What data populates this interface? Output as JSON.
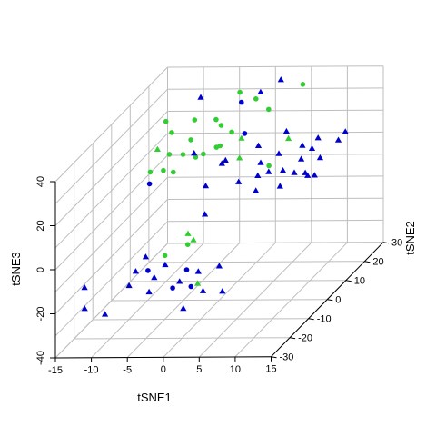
{
  "chart_data": {
    "type": "scatter3d",
    "title": "",
    "xlabel": "tSNE1",
    "ylabel": "tSNE2",
    "zlabel": "tSNE3",
    "xlim": [
      -15,
      15
    ],
    "ylim": [
      -30,
      30
    ],
    "zlim": [
      -40,
      40
    ],
    "x_ticks": [
      "-15",
      "-10",
      "-5",
      "0",
      "5",
      "10",
      "15"
    ],
    "y_ticks": [
      "-30",
      "-20",
      "-10",
      "0",
      "10",
      "20",
      "30"
    ],
    "z_ticks": [
      "-40",
      "-20",
      "0",
      "20",
      "40"
    ],
    "grid": true,
    "legend": "none",
    "colors": {
      "blue": "#0000cd",
      "green": "#32cd32"
    },
    "series": [
      {
        "color": "#0000cd",
        "marker": "triangle",
        "points": [
          [
            -12.5,
            -24.0,
            -13.3
          ],
          [
            -11.3,
            -28.6,
            -18.9
          ],
          [
            -8.8,
            -27.3,
            -22.6
          ],
          [
            -6.3,
            -20.5,
            -9.1
          ],
          [
            -6.4,
            -23.7,
            -12.8
          ],
          [
            -5.7,
            -17.5,
            -5.1
          ],
          [
            -3.1,
            -25.7,
            -14.0
          ],
          [
            -3.8,
            -20.2,
            -12.2
          ],
          [
            0.4,
            -22.8,
            -11.8
          ],
          [
            2.5,
            -20.9,
            -9.0
          ],
          [
            2.5,
            -28.9,
            -18.8
          ],
          [
            4.3,
            -25.3,
            -14.0
          ],
          [
            5.4,
            -20.8,
            -6.6
          ],
          [
            7.1,
            -25.7,
            -13.9
          ],
          [
            -2.3,
            -20.1,
            -6.5
          ],
          [
            1.6,
            -13.9,
            11.0
          ],
          [
            -0.6,
            -5.0,
            16.2
          ],
          [
            2.7,
            -0.1,
            13.7
          ],
          [
            4.8,
            2.1,
            14.6
          ],
          [
            5.0,
            0.3,
            9.3
          ],
          [
            9.3,
            -3.3,
            14.4
          ],
          [
            6.7,
            0.6,
            17.6
          ],
          [
            10.0,
            1.6,
            16.3
          ],
          [
            11.4,
            3.4,
            13.4
          ],
          [
            11.7,
            5.9,
            11.4
          ],
          [
            7.1,
            4.5,
            22.5
          ],
          [
            6.6,
            -3.3,
            25.1
          ],
          [
            2.3,
            -7.5,
            28.5
          ],
          [
            0.0,
            -13.5,
            38.4
          ],
          [
            3.2,
            -9.0,
            31.2
          ],
          [
            8.3,
            4.0,
            33.0
          ],
          [
            4.7,
            2.8,
            27.6
          ],
          [
            9.6,
            -2.9,
            21.2
          ],
          [
            11.1,
            1.1,
            22.9
          ],
          [
            11.9,
            0.2,
            17.4
          ],
          [
            13.0,
            3.9,
            21.0
          ],
          [
            10.7,
            8.4,
            21.4
          ],
          [
            11.1,
            10.1,
            24.7
          ],
          [
            13.9,
            10.2,
            23.6
          ],
          [
            14.9,
            10.1,
            27.5
          ],
          [
            11.6,
            -0.2,
            30.2
          ],
          [
            -3.5,
            3.5,
            49.1
          ],
          [
            6.2,
            -1.8,
            55.9
          ],
          [
            7.6,
            3.7,
            56.7
          ]
        ]
      },
      {
        "color": "#0000cd",
        "marker": "circle",
        "points": [
          [
            -5.5,
            -16.2,
            26.9
          ],
          [
            -0.2,
            -24.2,
            -13.6
          ],
          [
            3.9,
            -3.2,
            52.5
          ],
          [
            -4.6,
            -20.5,
            -8.8
          ],
          [
            2.2,
            -23.6,
            -13.5
          ],
          [
            4.2,
            -2.6,
            37.8
          ],
          [
            0.5,
            -19.4,
            -9.5
          ]
        ]
      },
      {
        "color": "#32cd32",
        "marker": "circle",
        "points": [
          [
            3.9,
            -4.0,
            57.7
          ],
          [
            5.4,
            -1.2,
            52.3
          ],
          [
            -3.9,
            -10.5,
            45.2
          ],
          [
            -6.1,
            -5.1,
            45.6
          ],
          [
            1.7,
            -8.3,
            49.1
          ],
          [
            6.6,
            1.0,
            45.6
          ],
          [
            -2.4,
            -4.0,
            45.3
          ],
          [
            3.1,
            -5.3,
            40.8
          ],
          [
            1.6,
            -5.2,
            43.8
          ],
          [
            -3.6,
            -12.9,
            37.4
          ],
          [
            -2.4,
            -10.2,
            35.0
          ],
          [
            -2.4,
            -6.0,
            38.0
          ],
          [
            -0.4,
            -7.0,
            32.4
          ],
          [
            1.3,
            -4.6,
            34.0
          ],
          [
            -5.3,
            -16.6,
            32.6
          ],
          [
            -3.6,
            -10.8,
            27.5
          ],
          [
            -1.5,
            -6.9,
            30.9
          ],
          [
            7.7,
            -3.1,
            23.5
          ],
          [
            1.8,
            -8.5,
            36.7
          ],
          [
            10.2,
            5.4,
            53.1
          ],
          [
            -2.6,
            -19.1,
            -3.2
          ],
          [
            -0.7,
            -14.2,
            -2.5
          ],
          [
            -5.6,
            -8.4,
            26.2
          ]
        ]
      },
      {
        "color": "#32cd32",
        "marker": "triangle",
        "points": [
          [
            0.4,
            -15.4,
            0.7
          ],
          [
            2.6,
            -21.6,
            -13.8
          ],
          [
            3.7,
            -2.4,
            35.5
          ],
          [
            -5.9,
            -10.4,
            37.6
          ],
          [
            7.4,
            8.5,
            25.9
          ],
          [
            4.7,
            -7.3,
            30.8
          ],
          [
            0.4,
            -18.3,
            6.0
          ]
        ]
      }
    ]
  }
}
